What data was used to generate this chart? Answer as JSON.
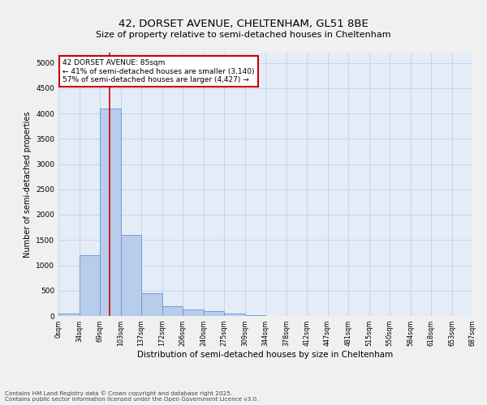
{
  "title_line1": "42, DORSET AVENUE, CHELTENHAM, GL51 8BE",
  "title_line2": "Size of property relative to semi-detached houses in Cheltenham",
  "xlabel": "Distribution of semi-detached houses by size in Cheltenham",
  "ylabel": "Number of semi-detached properties",
  "bin_labels": [
    "0sqm",
    "34sqm",
    "69sqm",
    "103sqm",
    "137sqm",
    "172sqm",
    "206sqm",
    "240sqm",
    "275sqm",
    "309sqm",
    "344sqm",
    "378sqm",
    "412sqm",
    "447sqm",
    "481sqm",
    "515sqm",
    "550sqm",
    "584sqm",
    "618sqm",
    "653sqm",
    "687sqm"
  ],
  "bar_values": [
    50,
    1200,
    4100,
    1600,
    450,
    200,
    130,
    90,
    50,
    20,
    0,
    0,
    0,
    0,
    0,
    0,
    0,
    0,
    0,
    0
  ],
  "bar_color": "#b8ccec",
  "bar_edge_color": "#6699cc",
  "red_line_x": 2.47,
  "subject_label": "42 DORSET AVENUE: 85sqm",
  "smaller_label": "← 41% of semi-detached houses are smaller (3,140)",
  "larger_label": "57% of semi-detached houses are larger (4,427) →",
  "annotation_box_color": "#ffffff",
  "annotation_box_edge": "#cc0000",
  "red_line_color": "#cc0000",
  "ylim": [
    0,
    5200
  ],
  "yticks": [
    0,
    500,
    1000,
    1500,
    2000,
    2500,
    3000,
    3500,
    4000,
    4500,
    5000
  ],
  "grid_color": "#c8d4e8",
  "bg_color": "#e4ecf8",
  "footnote1": "Contains HM Land Registry data © Crown copyright and database right 2025.",
  "footnote2": "Contains public sector information licensed under the Open Government Licence v3.0."
}
